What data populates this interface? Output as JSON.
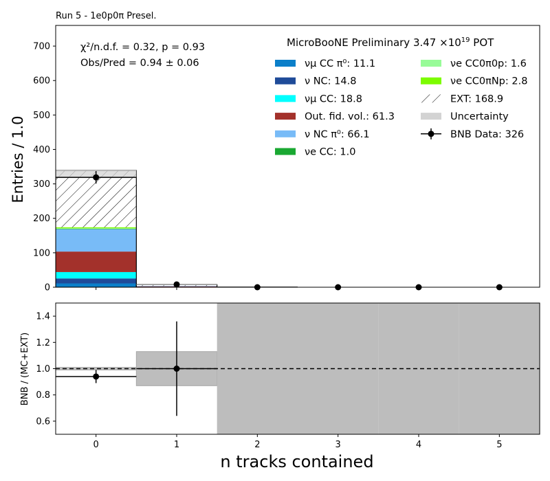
{
  "header": {
    "run_label": "Run 5 - 1e0p0π Presel."
  },
  "stats": {
    "chi2_line": "χ²/n.d.f. = 0.32, p = 0.93",
    "ratio_line": "Obs/Pred = 0.94 ± 0.06"
  },
  "legend": {
    "title_prefix": "MicroBooNE Preliminary 3.47 ×10",
    "title_exp": "19",
    "title_suffix": " POT",
    "entries": [
      {
        "label": "νμ CC π⁰: 11.1",
        "color": "#0b7fc9",
        "kind": "fill"
      },
      {
        "label": "ν NC: 14.8",
        "color": "#1f4b99",
        "kind": "fill"
      },
      {
        "label": "νμ CC: 18.8",
        "color": "#00ffff",
        "kind": "fill"
      },
      {
        "label": "Out. fid. vol.: 61.3",
        "color": "#a3312b",
        "kind": "fill"
      },
      {
        "label": "ν NC π⁰: 66.1",
        "color": "#78bbf7",
        "kind": "fill"
      },
      {
        "label": "νe CC: 1.0",
        "color": "#1aa832",
        "kind": "fill"
      },
      {
        "label": "νe CC0π0p: 1.6",
        "color": "#98fb98",
        "kind": "fill"
      },
      {
        "label": "νe CC0πNp: 2.8",
        "color": "#7cfc00",
        "kind": "fill"
      },
      {
        "label": "EXT: 168.9",
        "color": "#ffffff",
        "kind": "hatch"
      },
      {
        "label": "Uncertainty",
        "color": "#d3d3d3",
        "kind": "fill"
      },
      {
        "label": "BNB Data: 326",
        "color": "#000000",
        "kind": "data"
      }
    ]
  },
  "chart_data": [
    {
      "type": "bar",
      "stacked": true,
      "x": [
        0,
        1,
        2,
        3,
        4,
        5
      ],
      "xlim": [
        -0.5,
        5.5
      ],
      "ylim": [
        0,
        760
      ],
      "ylabel": "Entries / 1.0",
      "yticks": [
        0,
        100,
        200,
        300,
        400,
        500,
        600,
        700
      ],
      "series": [
        {
          "name": "νμ CC π⁰",
          "values": [
            11,
            0.1,
            0,
            0,
            0,
            0
          ]
        },
        {
          "name": "ν NC",
          "values": [
            14.5,
            0.3,
            0,
            0,
            0,
            0
          ]
        },
        {
          "name": "νμ CC",
          "values": [
            18.5,
            0.3,
            0,
            0,
            0,
            0
          ]
        },
        {
          "name": "Out. fid. vol.",
          "values": [
            59.5,
            1.8,
            0,
            0,
            0,
            0
          ]
        },
        {
          "name": "ν NC π⁰",
          "values": [
            65,
            1.1,
            0,
            0,
            0,
            0
          ]
        },
        {
          "name": "νe CC",
          "values": [
            1.0,
            0,
            0,
            0,
            0,
            0
          ]
        },
        {
          "name": "νe CC0π0p",
          "values": [
            1.6,
            0,
            0,
            0,
            0,
            0
          ]
        },
        {
          "name": "νe CC0πNp",
          "values": [
            2.8,
            0,
            0,
            0,
            0,
            0
          ]
        },
        {
          "name": "EXT",
          "values": [
            165,
            3.9,
            0,
            0,
            0,
            0
          ]
        }
      ],
      "uncertainty": [
        {
          "x": 0,
          "low": 318,
          "high": 342
        },
        {
          "x": 1,
          "low": 6,
          "high": 8
        }
      ],
      "data_points": {
        "name": "BNB Data",
        "x": [
          0,
          1,
          2,
          3,
          4,
          5
        ],
        "y": [
          319,
          8,
          0,
          0,
          0,
          0
        ],
        "yerr": [
          18,
          3,
          0,
          0,
          0,
          0
        ]
      }
    },
    {
      "type": "scatter",
      "x": [
        0,
        1,
        2,
        3,
        4,
        5
      ],
      "xlim": [
        -0.5,
        5.5
      ],
      "ylim": [
        0.5,
        1.5
      ],
      "xlabel": "n tracks contained",
      "ylabel": "BNB / (MC+EXT)",
      "yticks": [
        0.6,
        0.8,
        1.0,
        1.2,
        1.4
      ],
      "xtick_labels": [
        "0",
        "1",
        "2",
        "3",
        "4",
        "5"
      ],
      "ratio": [
        0.94,
        1.0
      ],
      "ratio_err": [
        0.05,
        0.36
      ],
      "pred_band": [
        {
          "x": 0,
          "low": 0.99,
          "high": 1.01
        },
        {
          "x": 1,
          "low": 0.87,
          "high": 1.13
        },
        {
          "x": 2,
          "low": 0.0,
          "high": 2.0
        },
        {
          "x": 3,
          "low": 0.0,
          "high": 2.0
        },
        {
          "x": 4,
          "low": 0.0,
          "high": 2.0
        },
        {
          "x": 5,
          "low": 0.0,
          "high": 2.0
        }
      ],
      "reference": 1.0
    }
  ]
}
